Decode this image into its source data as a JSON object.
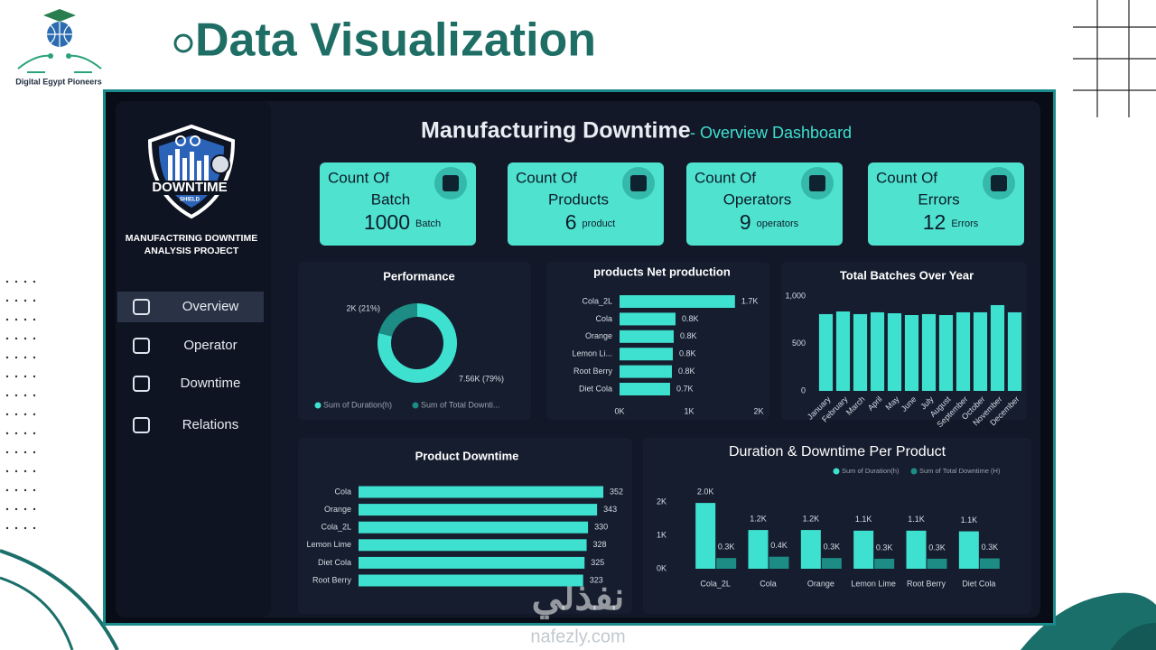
{
  "slide": {
    "title": "Data Visualization",
    "logo_caption": "Digital Egypt Pioneers",
    "watermark": "نفذلي",
    "watermark_url": "nafezly.com"
  },
  "sidebar": {
    "logo_title": "DOWNTIME",
    "logo_subtitle": "SHIELD",
    "project": [
      "MANUFACTRING DOWNTIME",
      "ANALYSIS PROJECT"
    ],
    "nav": [
      "Overview",
      "Operator",
      "Downtime",
      "Relations"
    ],
    "active": 0
  },
  "dashboard": {
    "title": "Manufacturing Downtime",
    "subtitle": "- Overview Dashboard"
  },
  "kpis": [
    {
      "label": [
        "Count Of",
        "Batch"
      ],
      "value": 1000,
      "unit": "Batch"
    },
    {
      "label": [
        "Count Of",
        "Products"
      ],
      "value": 6,
      "unit": "product"
    },
    {
      "label": [
        "Count Of",
        "Operators"
      ],
      "value": 9,
      "unit": "operators"
    },
    {
      "label": [
        "Count Of",
        "Errors"
      ],
      "value": 12,
      "unit": "Errors"
    }
  ],
  "charts": [
    {
      "type": "donut",
      "title": "Performance",
      "categories": [
        "Sum of Duration(h)",
        "Sum of Total Downti..."
      ],
      "values": [
        7560,
        2000
      ],
      "value_labels": [
        "7.56K (79%)",
        "2K (21%)"
      ],
      "colors": [
        "#3ee0cf",
        "#1c8c84"
      ]
    },
    {
      "type": "hbar",
      "title": "products Net production",
      "categories": [
        "Cola_2L",
        "Cola",
        "Orange",
        "Lemon Li...",
        "Root Berry",
        "Diet Cola"
      ],
      "values": [
        1660,
        805,
        779,
        766,
        753,
        727
      ],
      "value_labels": [
        "1.7K",
        "0.8K",
        "0.8K",
        "0.8K",
        "0.8K",
        "0.7K"
      ],
      "color": "#3ee0cf",
      "xlim": [
        0,
        2000
      ],
      "xticks": [
        {
          "value": 0,
          "label": "0K"
        },
        {
          "value": 1000,
          "label": "1K"
        },
        {
          "value": 2000,
          "label": "2K"
        }
      ]
    },
    {
      "type": "bar",
      "title": "Total Batches Over Year",
      "categories": [
        "January",
        "February",
        "March",
        "April",
        "May",
        "June",
        "July",
        "August",
        "September",
        "October",
        "November",
        "December"
      ],
      "values": [
        810,
        838,
        810,
        829,
        819,
        800,
        810,
        800,
        829,
        829,
        905,
        829
      ],
      "color": "#3ee0cf",
      "ylim": [
        0,
        1000
      ],
      "yticks": [
        0,
        500,
        {
          "value": 1000,
          "label": "1,000"
        }
      ]
    },
    {
      "type": "hbar-plain",
      "title": "Product Downtime",
      "categories": [
        "Cola",
        "Orange",
        "Cola_2L",
        "Lemon Lime",
        "Diet Cola",
        "Root Berry"
      ],
      "values": [
        352,
        343,
        330,
        328,
        325,
        323
      ],
      "color": "#3ee0cf"
    },
    {
      "type": "grouped-bar",
      "title": "Duration & Downtime Per Product",
      "categories": [
        "Cola_2L",
        "Cola",
        "Orange",
        "Lemon Lime",
        "Root Berry",
        "Diet Cola"
      ],
      "series": [
        {
          "name": "Sum of Duration(h)",
          "color": "#3ee0cf",
          "values": [
            1970,
            1160,
            1160,
            1140,
            1140,
            1120
          ],
          "value_labels": [
            "2.0K",
            "1.2K",
            "1.2K",
            "1.1K",
            "1.1K",
            "1.1K"
          ]
        },
        {
          "name": "Sum of Total Downtime (H)",
          "color": "#1c8c84",
          "values": [
            320,
            360,
            320,
            300,
            300,
            310
          ],
          "value_labels": [
            "0.3K",
            "0.4K",
            "0.3K",
            "0.3K",
            "0.3K",
            "0.3K"
          ]
        }
      ],
      "ylim": [
        0,
        2000
      ],
      "yticks": [
        {
          "value": 0,
          "label": "0K"
        },
        {
          "value": 1000,
          "label": "1K"
        },
        {
          "value": 2000,
          "label": "2K"
        }
      ]
    }
  ]
}
